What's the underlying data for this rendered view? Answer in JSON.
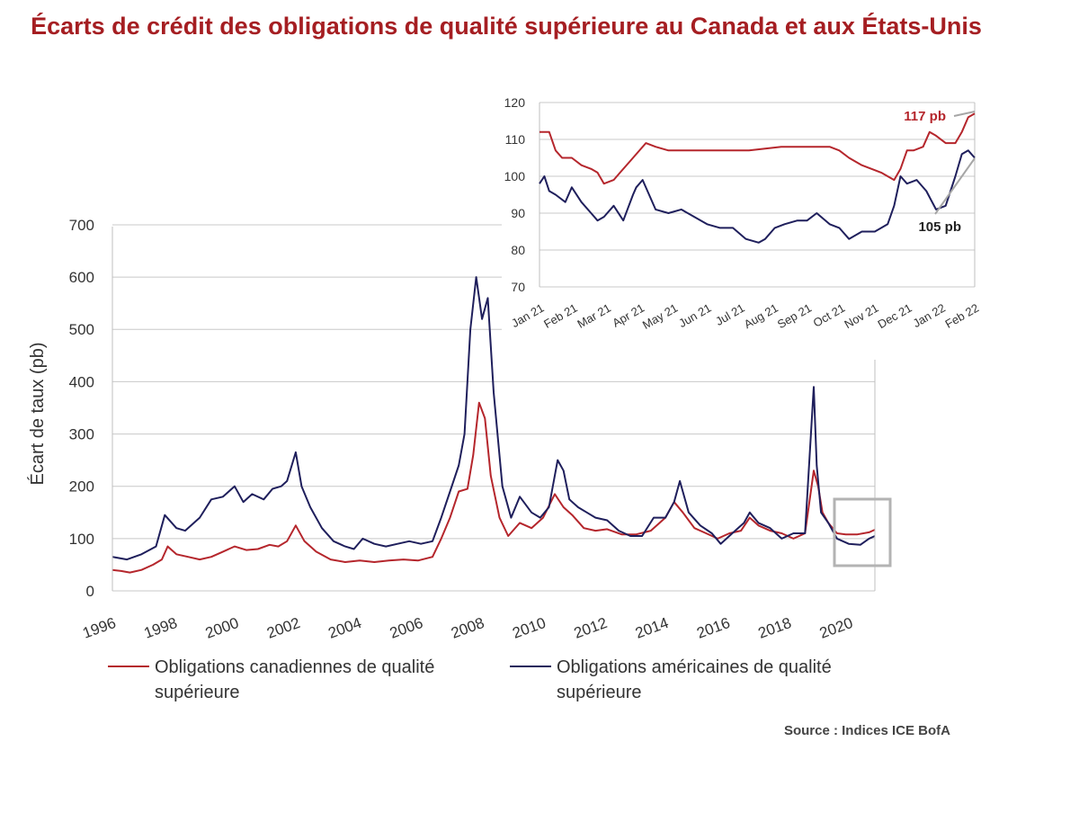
{
  "title": "Écarts de crédit des obligations de qualité supérieure au Canada et aux États-Unis",
  "source": "Source : Indices ICE BofA",
  "legend": [
    {
      "label": "Obligations canadiennes de qualité supérieure",
      "color": "#b5262c"
    },
    {
      "label": "Obligations américaines de qualité supérieure",
      "color": "#1f1f5c"
    }
  ],
  "chart_data": [
    {
      "type": "line",
      "ylabel": "Écart de taux (pb)",
      "xlabel": "",
      "ylim": [
        0,
        700
      ],
      "yticks": [
        0,
        100,
        200,
        300,
        400,
        500,
        600,
        700
      ],
      "xlim": [
        1996,
        2022.2
      ],
      "xticks": [
        "1996",
        "1998",
        "2000",
        "2002",
        "2004",
        "2006",
        "2008",
        "2010",
        "2012",
        "2014",
        "2016",
        "2018",
        "2020"
      ],
      "grid": "horizontal",
      "series": [
        {
          "name": "Obligations canadiennes de qualité supérieure",
          "color": "#b5262c",
          "x": [
            1996.0,
            1996.3,
            1996.6,
            1997.0,
            1997.4,
            1997.7,
            1997.9,
            1998.2,
            1998.6,
            1999.0,
            1999.4,
            1999.8,
            2000.2,
            2000.6,
            2001.0,
            2001.4,
            2001.7,
            2002.0,
            2002.3,
            2002.6,
            2003.0,
            2003.5,
            2004.0,
            2004.5,
            2005.0,
            2005.5,
            2006.0,
            2006.5,
            2007.0,
            2007.3,
            2007.6,
            2007.9,
            2008.2,
            2008.4,
            2008.6,
            2008.8,
            2009.0,
            2009.3,
            2009.6,
            2010.0,
            2010.4,
            2010.8,
            2011.2,
            2011.5,
            2011.8,
            2012.2,
            2012.6,
            2013.0,
            2013.5,
            2014.0,
            2014.5,
            2015.0,
            2015.3,
            2015.6,
            2016.0,
            2016.4,
            2016.8,
            2017.2,
            2017.6,
            2017.9,
            2018.2,
            2018.6,
            2019.0,
            2019.4,
            2019.8,
            2020.1,
            2020.25,
            2020.4,
            2020.6,
            2020.9,
            2021.2,
            2021.6,
            2022.0,
            2022.2
          ],
          "y": [
            40,
            38,
            35,
            40,
            50,
            60,
            85,
            70,
            65,
            60,
            65,
            75,
            85,
            78,
            80,
            88,
            85,
            95,
            125,
            95,
            75,
            60,
            55,
            58,
            55,
            58,
            60,
            58,
            65,
            100,
            140,
            190,
            195,
            260,
            360,
            330,
            220,
            140,
            105,
            130,
            120,
            140,
            185,
            160,
            145,
            120,
            115,
            118,
            108,
            108,
            115,
            140,
            170,
            150,
            120,
            110,
            100,
            110,
            115,
            140,
            125,
            115,
            110,
            100,
            110,
            230,
            200,
            150,
            130,
            110,
            108,
            108,
            112,
            117
          ]
        },
        {
          "name": "Obligations américaines de qualité supérieure",
          "color": "#1f1f5c",
          "x": [
            1996.0,
            1996.5,
            1997.0,
            1997.5,
            1997.8,
            1998.2,
            1998.5,
            1999.0,
            1999.4,
            1999.8,
            2000.2,
            2000.5,
            2000.8,
            2001.2,
            2001.5,
            2001.8,
            2002.0,
            2002.3,
            2002.5,
            2002.8,
            2003.2,
            2003.6,
            2004.0,
            2004.3,
            2004.6,
            2005.0,
            2005.4,
            2005.8,
            2006.2,
            2006.6,
            2007.0,
            2007.3,
            2007.6,
            2007.9,
            2008.1,
            2008.3,
            2008.5,
            2008.7,
            2008.9,
            2009.1,
            2009.4,
            2009.7,
            2010.0,
            2010.4,
            2010.7,
            2011.0,
            2011.3,
            2011.5,
            2011.7,
            2012.0,
            2012.3,
            2012.6,
            2013.0,
            2013.4,
            2013.8,
            2014.2,
            2014.6,
            2015.0,
            2015.3,
            2015.5,
            2015.8,
            2016.2,
            2016.6,
            2016.9,
            2017.3,
            2017.7,
            2017.9,
            2018.2,
            2018.6,
            2019.0,
            2019.4,
            2019.8,
            2020.1,
            2020.2,
            2020.35,
            2020.6,
            2020.9,
            2021.3,
            2021.7,
            2022.0,
            2022.2
          ],
          "y": [
            65,
            60,
            70,
            85,
            145,
            120,
            115,
            140,
            175,
            180,
            200,
            170,
            185,
            175,
            195,
            200,
            210,
            265,
            200,
            160,
            120,
            95,
            85,
            80,
            100,
            90,
            85,
            90,
            95,
            90,
            95,
            140,
            190,
            240,
            300,
            500,
            600,
            520,
            560,
            380,
            200,
            140,
            180,
            150,
            140,
            160,
            250,
            230,
            175,
            160,
            150,
            140,
            135,
            115,
            105,
            105,
            140,
            140,
            170,
            210,
            150,
            125,
            110,
            90,
            110,
            130,
            150,
            130,
            120,
            100,
            110,
            110,
            390,
            240,
            150,
            130,
            100,
            90,
            88,
            100,
            105
          ]
        }
      ]
    },
    {
      "type": "line",
      "ylim": [
        70,
        120
      ],
      "yticks": [
        70,
        80,
        90,
        100,
        110,
        120
      ],
      "xlim": [
        0,
        13.5
      ],
      "xticks": [
        "Jan 21",
        "Feb 21",
        "Mar 21",
        "Apr 21",
        "May 21",
        "Jun 21",
        "Jul 21",
        "Aug 21",
        "Sep 21",
        "Oct 21",
        "Nov 21",
        "Dec 21",
        "Jan 22",
        "Feb 22"
      ],
      "grid": "horizontal",
      "annotations": [
        {
          "text": "117 pb",
          "color": "#b5262c",
          "x": 13.4,
          "y": 117
        },
        {
          "text": "105 pb",
          "color": "#222222",
          "x": 13.4,
          "y": 105
        }
      ],
      "series": [
        {
          "name": "Obligations canadiennes de qualité supérieure",
          "color": "#b5262c",
          "x": [
            0,
            0.3,
            0.5,
            0.7,
            1.0,
            1.3,
            1.6,
            1.8,
            2.0,
            2.3,
            2.5,
            2.8,
            3.0,
            3.3,
            3.6,
            4.0,
            4.5,
            5.0,
            5.5,
            6.0,
            6.5,
            7.0,
            7.5,
            8.0,
            8.5,
            9.0,
            9.3,
            9.6,
            10.0,
            10.3,
            10.6,
            11.0,
            11.2,
            11.4,
            11.6,
            11.9,
            12.1,
            12.3,
            12.6,
            12.9,
            13.1,
            13.3,
            13.5
          ],
          "y": [
            112,
            112,
            107,
            105,
            105,
            103,
            102,
            101,
            98,
            99,
            101,
            104,
            106,
            109,
            108,
            107,
            107,
            107,
            107,
            107,
            107,
            107.5,
            108,
            108,
            108,
            108,
            107,
            105,
            103,
            102,
            101,
            99,
            102,
            107,
            107,
            108,
            112,
            111,
            109,
            109,
            112,
            116,
            117
          ]
        },
        {
          "name": "Obligations américaines de qualité supérieure",
          "color": "#1f1f5c",
          "x": [
            0,
            0.15,
            0.3,
            0.5,
            0.8,
            1.0,
            1.3,
            1.6,
            1.8,
            2.0,
            2.3,
            2.6,
            2.9,
            3.0,
            3.2,
            3.4,
            3.6,
            4.0,
            4.4,
            4.8,
            5.2,
            5.6,
            6.0,
            6.4,
            6.8,
            7.0,
            7.3,
            7.6,
            8.0,
            8.3,
            8.6,
            9.0,
            9.3,
            9.6,
            10.0,
            10.4,
            10.8,
            11.0,
            11.2,
            11.4,
            11.7,
            12.0,
            12.3,
            12.6,
            12.9,
            13.1,
            13.3,
            13.5
          ],
          "y": [
            98,
            100,
            96,
            95,
            93,
            97,
            93,
            90,
            88,
            89,
            92,
            88,
            95,
            97,
            99,
            95,
            91,
            90,
            91,
            89,
            87,
            86,
            86,
            83,
            82,
            83,
            86,
            87,
            88,
            88,
            90,
            87,
            86,
            83,
            85,
            85,
            87,
            92,
            100,
            98,
            99,
            96,
            91,
            92,
            100,
            106,
            107,
            105
          ]
        }
      ]
    }
  ]
}
